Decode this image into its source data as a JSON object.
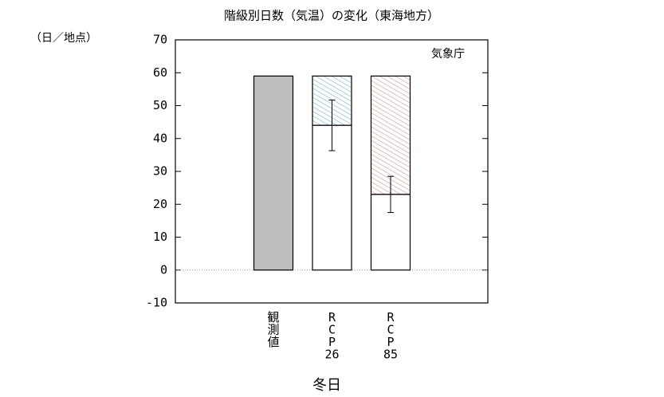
{
  "chart_data": {
    "type": "bar",
    "title": "階級別日数（気温）の変化（東海地方）",
    "y_label": "（日／地点）",
    "source": "気象庁",
    "x_label": "冬日",
    "categories": [
      "観測値",
      "RCP26",
      "RCP85"
    ],
    "values": [
      59,
      44,
      23
    ],
    "colors": [
      "#bdbdbd",
      "#ffffff",
      "#ffffff"
    ],
    "decrease": [
      null,
      15,
      36
    ],
    "decrease_colors": [
      null,
      "#5aa5c8",
      "#e07a70"
    ],
    "errors": [
      null,
      7.7,
      5.5
    ],
    "ylim": [
      -10,
      70
    ],
    "yticks": [
      -10,
      0,
      10,
      20,
      30,
      40,
      50,
      60,
      70
    ]
  }
}
